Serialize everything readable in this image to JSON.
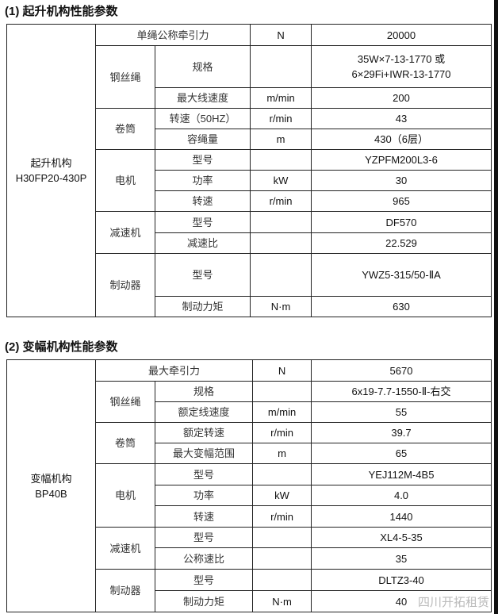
{
  "sections": [
    {
      "title": "(1)  起升机构性能参数",
      "mechanism_name": "起升机构",
      "mechanism_model": "H30FP20-430P",
      "groups": [
        {
          "name": null,
          "items": [
            {
              "label": "单绳公称牵引力",
              "unit": "N",
              "value": "20000"
            }
          ]
        },
        {
          "name": "钢丝绳",
          "items": [
            {
              "label": "规格",
              "unit": "",
              "value": "35W×7-13-1770 或",
              "value2": "6×29Fi+IWR-13-1770"
            },
            {
              "label": "最大线速度",
              "unit": "m/min",
              "value": "200"
            }
          ]
        },
        {
          "name": "卷筒",
          "items": [
            {
              "label": "转速（50HZ）",
              "unit": "r/min",
              "value": "43"
            },
            {
              "label": "容绳量",
              "unit": "m",
              "value": "430（6层）"
            }
          ]
        },
        {
          "name": "电机",
          "items": [
            {
              "label": "型号",
              "unit": "",
              "value": "YZPFM200L3-6"
            },
            {
              "label": "功率",
              "unit": "kW",
              "value": "30"
            },
            {
              "label": "转速",
              "unit": "r/min",
              "value": "965"
            }
          ]
        },
        {
          "name": "减速机",
          "items": [
            {
              "label": "型号",
              "unit": "",
              "value": "DF570"
            },
            {
              "label": "减速比",
              "unit": "",
              "value": "22.529"
            }
          ]
        },
        {
          "name": "制动器",
          "items": [
            {
              "label": "型号",
              "unit": "",
              "value": "YWZ5-315/50-ⅡA"
            },
            {
              "label": "制动力矩",
              "unit": "N·m",
              "value": "630"
            }
          ]
        }
      ]
    },
    {
      "title": "(2)  变幅机构性能参数",
      "mechanism_name": "变幅机构",
      "mechanism_model": "BP40B",
      "groups": [
        {
          "name": null,
          "items": [
            {
              "label": "最大牵引力",
              "unit": "N",
              "value": "5670"
            }
          ]
        },
        {
          "name": "钢丝绳",
          "items": [
            {
              "label": "规格",
              "unit": "",
              "value": "6x19-7.7-1550-Ⅱ-右交"
            },
            {
              "label": "额定线速度",
              "unit": "m/min",
              "value": "55"
            }
          ]
        },
        {
          "name": "卷筒",
          "items": [
            {
              "label": "额定转速",
              "unit": "r/min",
              "value": "39.7"
            },
            {
              "label": "最大变幅范围",
              "unit": "m",
              "value": "65"
            }
          ]
        },
        {
          "name": "电机",
          "items": [
            {
              "label": "型号",
              "unit": "",
              "value": "YEJ112M-4B5"
            },
            {
              "label": "功率",
              "unit": "kW",
              "value": "4.0"
            },
            {
              "label": "转速",
              "unit": "r/min",
              "value": "1440"
            }
          ]
        },
        {
          "name": "减速机",
          "items": [
            {
              "label": "型号",
              "unit": "",
              "value": "XL4-5-35"
            },
            {
              "label": "公称速比",
              "unit": "",
              "value": "35"
            }
          ]
        },
        {
          "name": "制动器",
          "items": [
            {
              "label": "型号",
              "unit": "",
              "value": "DLTZ3-40"
            },
            {
              "label": "制动力矩",
              "unit": "N·m",
              "value": "40"
            }
          ]
        }
      ]
    }
  ],
  "watermark": "四川开拓租赁"
}
